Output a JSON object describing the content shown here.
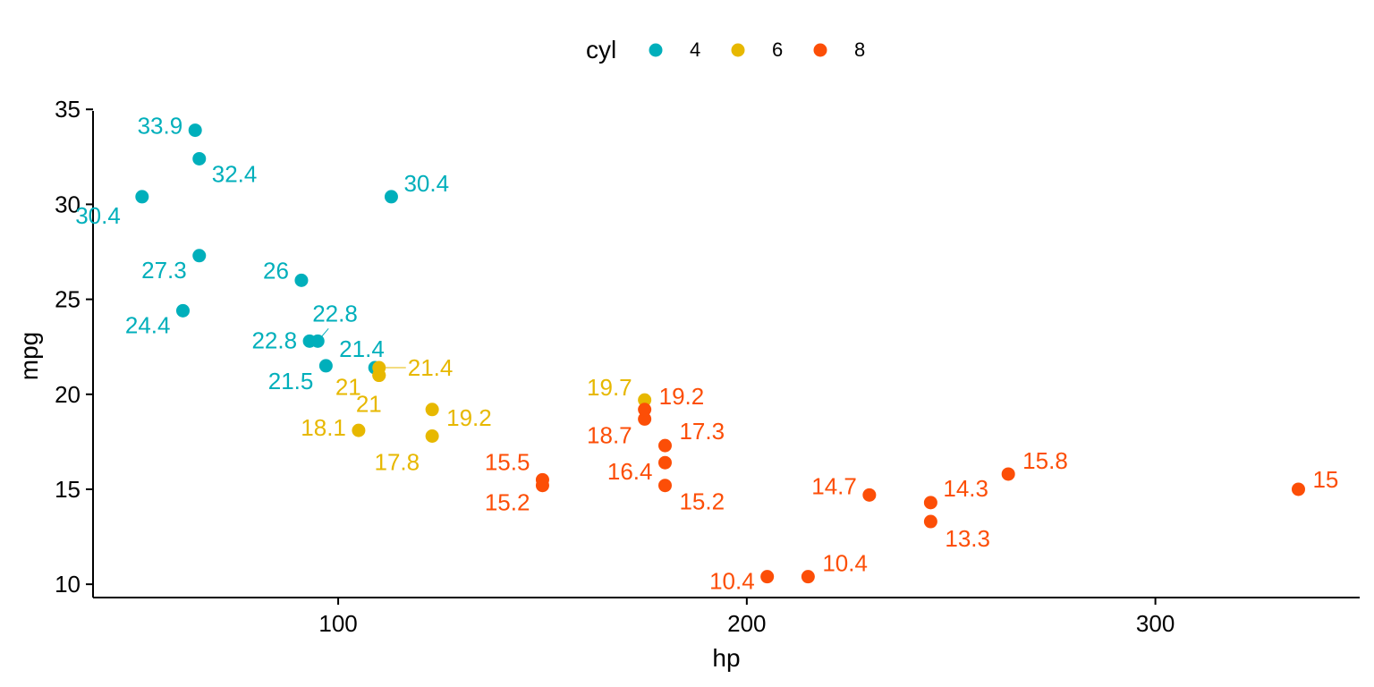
{
  "chart_data": {
    "type": "scatter",
    "xlabel": "hp",
    "ylabel": "mpg",
    "xlim": [
      40,
      350
    ],
    "ylim": [
      9.3,
      35.2
    ],
    "x_ticks": [
      100,
      200,
      300
    ],
    "y_ticks": [
      10,
      15,
      20,
      25,
      30,
      35
    ],
    "grid": false,
    "legend": {
      "title": "cyl",
      "position": "top",
      "entries": [
        "4",
        "6",
        "8"
      ]
    },
    "colors": {
      "4": "#00AFBB",
      "6": "#E7B800",
      "8": "#FC4E07"
    },
    "series": [
      {
        "name": "4",
        "points": [
          {
            "x": 93,
            "y": 22.8
          },
          {
            "x": 62,
            "y": 24.4
          },
          {
            "x": 95,
            "y": 22.8
          },
          {
            "x": 66,
            "y": 32.4
          },
          {
            "x": 52,
            "y": 30.4
          },
          {
            "x": 65,
            "y": 33.9
          },
          {
            "x": 97,
            "y": 21.5
          },
          {
            "x": 66,
            "y": 27.3
          },
          {
            "x": 91,
            "y": 26
          },
          {
            "x": 113,
            "y": 30.4
          },
          {
            "x": 109,
            "y": 21.4
          }
        ],
        "labels": [
          "22.8",
          "24.4",
          "22.8",
          "32.4",
          "30.4",
          "33.9",
          "21.5",
          "27.3",
          "26",
          "30.4",
          "21.4"
        ]
      },
      {
        "name": "6",
        "points": [
          {
            "x": 110,
            "y": 21
          },
          {
            "x": 110,
            "y": 21
          },
          {
            "x": 110,
            "y": 21.4
          },
          {
            "x": 105,
            "y": 18.1
          },
          {
            "x": 123,
            "y": 19.2
          },
          {
            "x": 123,
            "y": 17.8
          },
          {
            "x": 175,
            "y": 19.7
          }
        ],
        "labels": [
          "21",
          "21",
          "21.4",
          "18.1",
          "19.2",
          "17.8",
          "19.7"
        ]
      },
      {
        "name": "8",
        "points": [
          {
            "x": 175,
            "y": 18.7
          },
          {
            "x": 245,
            "y": 14.3
          },
          {
            "x": 180,
            "y": 16.4
          },
          {
            "x": 180,
            "y": 17.3
          },
          {
            "x": 180,
            "y": 15.2
          },
          {
            "x": 205,
            "y": 10.4
          },
          {
            "x": 215,
            "y": 10.4
          },
          {
            "x": 230,
            "y": 14.7
          },
          {
            "x": 150,
            "y": 15.5
          },
          {
            "x": 150,
            "y": 15.2
          },
          {
            "x": 245,
            "y": 13.3
          },
          {
            "x": 175,
            "y": 19.2
          },
          {
            "x": 264,
            "y": 15.8
          },
          {
            "x": 335,
            "y": 15
          }
        ],
        "labels": [
          "18.7",
          "14.3",
          "16.4",
          "17.3",
          "15.2",
          "10.4",
          "10.4",
          "14.7",
          "15.5",
          "15.2",
          "13.3",
          "19.2",
          "15.8",
          "15"
        ]
      }
    ]
  }
}
